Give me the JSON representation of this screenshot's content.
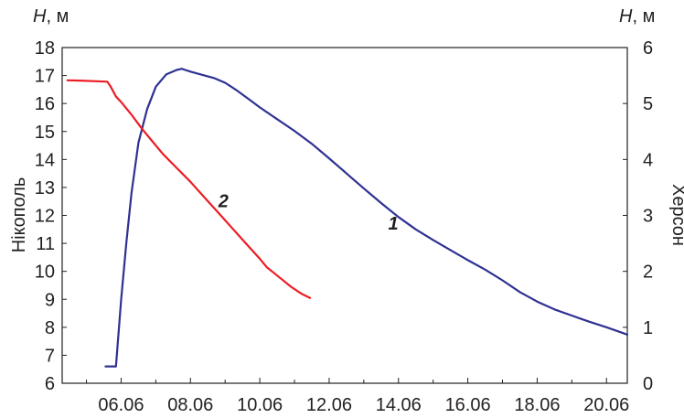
{
  "chart_data": {
    "type": "line",
    "left_unit": {
      "var": "H",
      "rest": ", м"
    },
    "right_unit": {
      "var": "H",
      "rest": ", м"
    },
    "ylabel_left": "Нікополь",
    "ylabel_right": "Херсон",
    "x_ticks": [
      "06.06",
      "08.06",
      "10.06",
      "12.06",
      "14.06",
      "16.06",
      "18.06",
      "20.06"
    ],
    "xlim": [
      4.3,
      20.6
    ],
    "ylim_left": [
      6,
      18
    ],
    "ylim_right": [
      0,
      6
    ],
    "yticks_left": [
      6,
      7,
      8,
      9,
      10,
      11,
      12,
      13,
      14,
      15,
      16,
      17,
      18
    ],
    "yticks_right": [
      0,
      1,
      2,
      3,
      4,
      5,
      6
    ],
    "colors": {
      "series_1": "#2e3192",
      "series_2": "#ed1c24",
      "axis": "#231f20"
    },
    "series": [
      {
        "name": "1",
        "axis": "right",
        "x": [
          5.55,
          5.85,
          6.0,
          6.15,
          6.3,
          6.5,
          6.75,
          7.0,
          7.3,
          7.6,
          7.75,
          7.85,
          8.0,
          8.3,
          8.7,
          9.0,
          9.3,
          9.7,
          10.0,
          10.5,
          11.0,
          11.5,
          12.0,
          12.5,
          13.0,
          13.5,
          14.0,
          14.5,
          15.0,
          15.5,
          16.0,
          16.5,
          17.0,
          17.5,
          18.0,
          18.5,
          19.0,
          19.5,
          20.0,
          20.6
        ],
        "y": [
          0.3,
          0.3,
          1.5,
          2.5,
          3.4,
          4.3,
          4.9,
          5.3,
          5.52,
          5.6,
          5.62,
          5.6,
          5.57,
          5.52,
          5.45,
          5.37,
          5.25,
          5.07,
          4.93,
          4.72,
          4.51,
          4.28,
          4.02,
          3.75,
          3.48,
          3.22,
          2.97,
          2.75,
          2.56,
          2.38,
          2.2,
          2.03,
          1.84,
          1.63,
          1.46,
          1.32,
          1.21,
          1.1,
          1.0,
          0.87
        ]
      },
      {
        "name": "2",
        "axis": "left",
        "x": [
          4.45,
          4.8,
          5.2,
          5.6,
          5.7,
          5.85,
          6.0,
          6.3,
          6.6,
          6.9,
          7.2,
          7.6,
          8.0,
          8.4,
          8.8,
          9.2,
          9.6,
          10.0,
          10.2,
          10.4,
          10.6,
          10.9,
          11.2,
          11.45
        ],
        "y": [
          16.83,
          16.82,
          16.8,
          16.78,
          16.6,
          16.25,
          16.05,
          15.6,
          15.1,
          14.65,
          14.2,
          13.7,
          13.2,
          12.65,
          12.1,
          11.55,
          11.0,
          10.45,
          10.15,
          9.95,
          9.75,
          9.45,
          9.2,
          9.05
        ]
      }
    ],
    "annotations": [
      {
        "text": "1",
        "series": "1",
        "x": 13.85,
        "y": 2.75
      },
      {
        "text": "2",
        "series": "2",
        "x": 8.95,
        "y": 12.3
      }
    ]
  }
}
